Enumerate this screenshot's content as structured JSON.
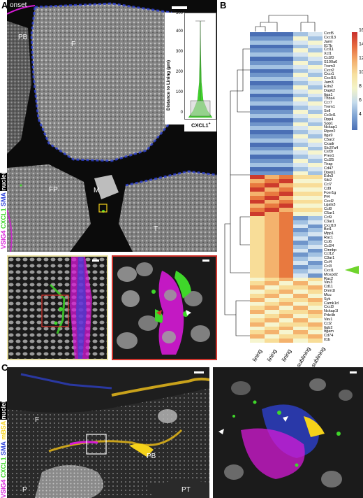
{
  "figure": {
    "panel_a": {
      "letter": "A",
      "onset_label": "onset",
      "region_labels": [
        "PB",
        "F",
        "FP",
        "M",
        "T"
      ],
      "channel_label": {
        "vsig4": "VSIG4",
        "cxcl1": "CXCL1",
        "blue": "SMA",
        "nuclei": "nuclei"
      },
      "inset": {
        "y_label": "Distance to Lining (µm)",
        "x_label": "CXCL1",
        "x_label_sup": "+",
        "yticks": [
          "0",
          "100",
          "200",
          "300",
          "400",
          "500"
        ],
        "ymax": 500
      }
    },
    "panel_b": {
      "letter": "B",
      "columns": [
        "lining",
        "lining",
        "lining",
        "sublining",
        "sublining"
      ],
      "genes": [
        "Cxcl5",
        "Cxcl13",
        "Jaml",
        "Il17b",
        "Ccl11",
        "Xcl1",
        "Ccl20",
        "S100a6",
        "Trem3",
        "Cxcr2",
        "Cxcr1",
        "Cxcl15",
        "Jam3",
        "Edn2",
        "Dapk2",
        "Itga1",
        "Thbs4",
        "Ccr7",
        "Trem1",
        "Sell",
        "Cx3cl1",
        "Dpp4",
        "Spp1",
        "Nckap1",
        "Ripor2",
        "Itga9",
        "C5ar2",
        "Cxadr",
        "Slc37a4",
        "Csf3r",
        "Prex1",
        "Ccl25",
        "Tirap",
        "Cd47",
        "Dpep1",
        "Edn3",
        "Stk2",
        "Ccl7",
        "Cd9",
        "Fcer1g",
        "Pf4",
        "Cxcl2",
        "Lgals3",
        "Ccl8",
        "C5ar1",
        "Ccl9",
        "C3ar1",
        "Cxcl10",
        "Bst1",
        "Mpp1",
        "Rac1",
        "Ccl6",
        "Ccl24",
        "Ctnnbp",
        "Ccl12",
        "C3ar1",
        "Ccl4",
        "Ccl3",
        "Cxcl1",
        "Mospd2",
        "Rac2",
        "Vav3",
        "Cd11",
        "Dnm1l",
        "Mcu",
        "Syk",
        "Camk1d",
        "Cxcl3",
        "Nckap1l",
        "Pde4b",
        "Vav1",
        "Ccl2",
        "Itgb2",
        "Itgam",
        "Cd74",
        "Il1b"
      ],
      "colorbar": {
        "ticks": [
          "16",
          "14",
          "12",
          "10",
          "8",
          "6",
          "4"
        ],
        "min": 3,
        "max": 17
      },
      "highlight_gene": "Cxcl1"
    },
    "panel_c": {
      "letter": "C",
      "region_labels": [
        "F",
        "PB",
        "P",
        "PT"
      ],
      "channel_label": {
        "vsig4": "VSIG4",
        "cxcl1": "CXCL1",
        "blue": "SMA",
        "mbsa": "mBSA",
        "nuclei": "nuclei"
      }
    },
    "colors": {
      "magenta": "#d61ad6",
      "green": "#3fd62a",
      "blue": "#2f43d8",
      "yellow": "#f5d21a",
      "arrow_green": "#6fd42c"
    }
  }
}
